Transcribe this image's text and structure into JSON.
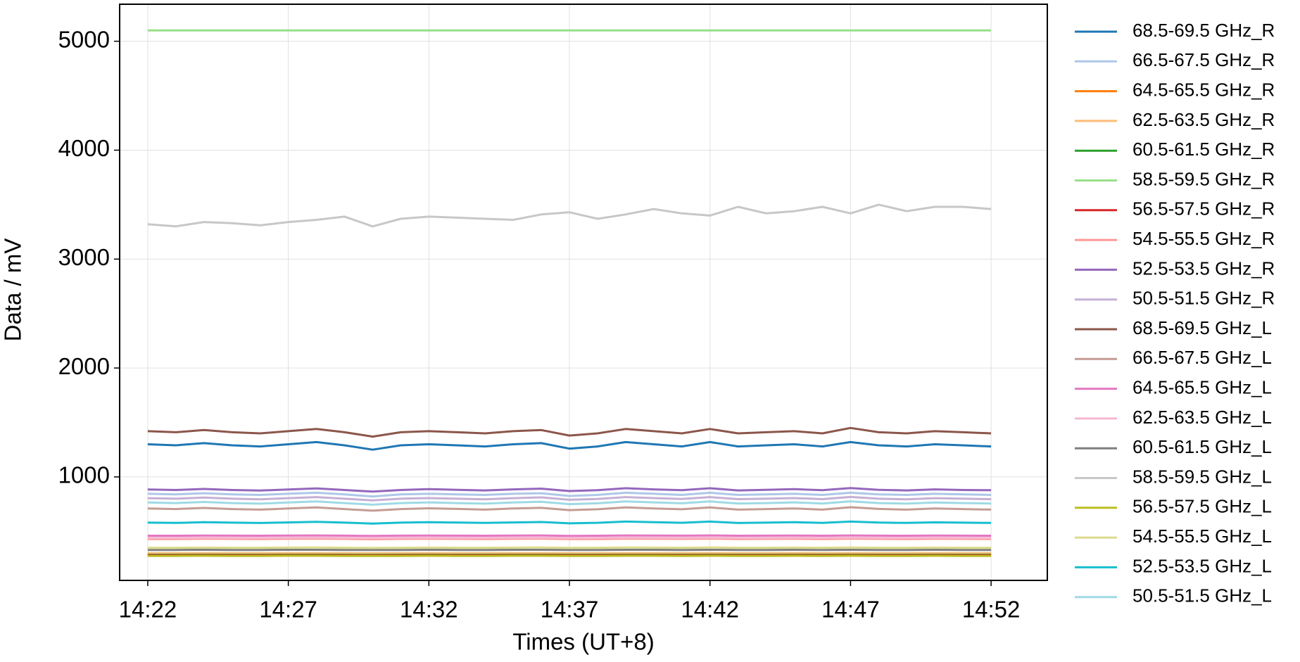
{
  "chart_data": {
    "type": "line",
    "xlabel": "Times (UT+8)",
    "ylabel": "Data / mV",
    "x": [
      "14:22",
      "14:23",
      "14:24",
      "14:25",
      "14:26",
      "14:27",
      "14:28",
      "14:29",
      "14:30",
      "14:31",
      "14:32",
      "14:33",
      "14:34",
      "14:35",
      "14:36",
      "14:37",
      "14:38",
      "14:39",
      "14:40",
      "14:41",
      "14:42",
      "14:43",
      "14:44",
      "14:45",
      "14:46",
      "14:47",
      "14:48",
      "14:49",
      "14:50",
      "14:51",
      "14:52"
    ],
    "xlim": [
      "14:21",
      "14:54"
    ],
    "xticks": [
      "14:22",
      "14:27",
      "14:32",
      "14:37",
      "14:42",
      "14:47",
      "14:52"
    ],
    "ylim": [
      50,
      5340
    ],
    "yticks": [
      1000,
      2000,
      3000,
      4000,
      5000
    ],
    "grid": true,
    "legend": "outside right",
    "series": [
      {
        "name": "68.5-69.5 GHz_R",
        "color": "#1f77b4",
        "values": [
          1300,
          1290,
          1310,
          1290,
          1280,
          1300,
          1320,
          1290,
          1250,
          1290,
          1300,
          1290,
          1280,
          1300,
          1310,
          1260,
          1280,
          1320,
          1300,
          1280,
          1320,
          1280,
          1290,
          1300,
          1280,
          1320,
          1290,
          1280,
          1300,
          1290,
          1280
        ]
      },
      {
        "name": "66.5-67.5 GHz_R",
        "color": "#aec7e8",
        "values": [
          845,
          840,
          850,
          840,
          835,
          845,
          855,
          840,
          820,
          840,
          845,
          840,
          835,
          845,
          850,
          825,
          835,
          855,
          845,
          835,
          855,
          835,
          840,
          845,
          835,
          855,
          840,
          835,
          845,
          840,
          835
        ]
      },
      {
        "name": "64.5-65.5 GHz_R",
        "color": "#ff7f0e",
        "values": [
          290,
          290,
          291,
          290,
          290,
          291,
          291,
          290,
          289,
          290,
          291,
          290,
          290,
          291,
          291,
          290,
          290,
          291,
          291,
          290,
          291,
          290,
          290,
          291,
          290,
          291,
          290,
          290,
          291,
          290,
          290
        ]
      },
      {
        "name": "62.5-63.5 GHz_R",
        "color": "#ffbb78",
        "values": [
          300,
          300,
          301,
          300,
          300,
          301,
          301,
          300,
          299,
          300,
          301,
          300,
          300,
          301,
          301,
          300,
          300,
          301,
          301,
          300,
          301,
          300,
          300,
          301,
          300,
          301,
          300,
          300,
          301,
          300,
          300
        ]
      },
      {
        "name": "60.5-61.5 GHz_R",
        "color": "#2ca02c",
        "values": [
          285,
          285,
          286,
          285,
          285,
          286,
          286,
          285,
          284,
          285,
          286,
          285,
          285,
          286,
          286,
          285,
          285,
          286,
          286,
          285,
          286,
          285,
          285,
          286,
          285,
          286,
          285,
          285,
          286,
          285,
          285
        ]
      },
      {
        "name": "58.5-59.5 GHz_R",
        "color": "#98df8a",
        "values": [
          5100,
          5100,
          5100,
          5100,
          5100,
          5100,
          5100,
          5100,
          5100,
          5100,
          5100,
          5100,
          5100,
          5100,
          5100,
          5100,
          5100,
          5100,
          5100,
          5100,
          5100,
          5100,
          5100,
          5100,
          5100,
          5100,
          5100,
          5100,
          5100,
          5100,
          5100
        ]
      },
      {
        "name": "56.5-57.5 GHz_R",
        "color": "#d62728",
        "values": [
          280,
          280,
          281,
          280,
          280,
          281,
          281,
          280,
          279,
          280,
          281,
          280,
          280,
          281,
          281,
          280,
          280,
          281,
          281,
          280,
          281,
          280,
          280,
          281,
          280,
          281,
          280,
          280,
          281,
          280,
          280
        ]
      },
      {
        "name": "54.5-55.5 GHz_R",
        "color": "#ff9896",
        "values": [
          430,
          430,
          432,
          431,
          430,
          432,
          433,
          431,
          428,
          431,
          432,
          431,
          430,
          432,
          433,
          429,
          430,
          433,
          432,
          431,
          433,
          430,
          431,
          432,
          430,
          433,
          431,
          430,
          432,
          431,
          430
        ]
      },
      {
        "name": "52.5-53.5 GHz_R",
        "color": "#9467bd",
        "values": [
          885,
          880,
          890,
          880,
          875,
          885,
          895,
          880,
          865,
          880,
          888,
          882,
          876,
          886,
          892,
          870,
          878,
          896,
          886,
          878,
          896,
          876,
          882,
          888,
          878,
          898,
          882,
          876,
          886,
          880,
          878
        ]
      },
      {
        "name": "50.5-51.5 GHz_R",
        "color": "#c5b0d5",
        "values": [
          805,
          800,
          810,
          800,
          795,
          805,
          815,
          800,
          785,
          800,
          806,
          800,
          795,
          805,
          812,
          790,
          798,
          815,
          806,
          798,
          815,
          796,
          800,
          806,
          796,
          816,
          800,
          795,
          805,
          800,
          796
        ]
      },
      {
        "name": "68.5-69.5 GHz_L",
        "color": "#8c564b",
        "values": [
          1420,
          1410,
          1430,
          1410,
          1400,
          1420,
          1440,
          1410,
          1370,
          1410,
          1420,
          1410,
          1400,
          1420,
          1430,
          1380,
          1400,
          1440,
          1420,
          1400,
          1440,
          1400,
          1410,
          1420,
          1400,
          1450,
          1410,
          1400,
          1420,
          1410,
          1400
        ]
      },
      {
        "name": "66.5-67.5 GHz_L",
        "color": "#c49c94",
        "values": [
          710,
          705,
          715,
          705,
          700,
          710,
          720,
          705,
          690,
          705,
          712,
          706,
          700,
          710,
          716,
          695,
          703,
          720,
          710,
          703,
          720,
          700,
          705,
          710,
          700,
          722,
          706,
          700,
          710,
          705,
          700
        ]
      },
      {
        "name": "64.5-65.5 GHz_L",
        "color": "#e377c2",
        "values": [
          460,
          460,
          462,
          461,
          460,
          462,
          463,
          461,
          458,
          461,
          462,
          461,
          460,
          462,
          463,
          459,
          460,
          463,
          462,
          461,
          463,
          460,
          461,
          462,
          460,
          463,
          461,
          460,
          462,
          461,
          460
        ]
      },
      {
        "name": "62.5-63.5 GHz_L",
        "color": "#f7b6d2",
        "values": [
          440,
          440,
          441,
          440,
          440,
          441,
          442,
          440,
          438,
          440,
          441,
          440,
          440,
          441,
          442,
          439,
          440,
          442,
          441,
          440,
          442,
          440,
          440,
          441,
          440,
          442,
          440,
          440,
          441,
          440,
          440
        ]
      },
      {
        "name": "60.5-61.5 GHz_L",
        "color": "#7f7f7f",
        "values": [
          330,
          330,
          331,
          330,
          330,
          331,
          331,
          330,
          329,
          330,
          331,
          330,
          330,
          331,
          331,
          330,
          330,
          331,
          331,
          330,
          331,
          330,
          330,
          331,
          330,
          331,
          330,
          330,
          331,
          330,
          330
        ]
      },
      {
        "name": "58.5-59.5 GHz_L",
        "color": "#c7c7c7",
        "values": [
          3320,
          3300,
          3340,
          3330,
          3310,
          3340,
          3360,
          3390,
          3300,
          3370,
          3390,
          3380,
          3370,
          3360,
          3410,
          3430,
          3370,
          3410,
          3460,
          3420,
          3400,
          3480,
          3420,
          3440,
          3480,
          3420,
          3500,
          3440,
          3480,
          3480,
          3460
        ]
      },
      {
        "name": "56.5-57.5 GHz_L",
        "color": "#bcbd22",
        "values": [
          275,
          275,
          276,
          275,
          275,
          276,
          276,
          275,
          274,
          275,
          276,
          275,
          275,
          276,
          276,
          275,
          275,
          276,
          276,
          275,
          276,
          275,
          275,
          276,
          275,
          276,
          275,
          275,
          276,
          275,
          275
        ]
      },
      {
        "name": "54.5-55.5 GHz_L",
        "color": "#dbdb8d",
        "values": [
          350,
          350,
          351,
          350,
          350,
          351,
          352,
          350,
          348,
          350,
          351,
          350,
          350,
          351,
          352,
          349,
          350,
          352,
          351,
          350,
          352,
          350,
          350,
          351,
          350,
          352,
          350,
          350,
          351,
          350,
          350
        ]
      },
      {
        "name": "52.5-53.5 GHz_L",
        "color": "#17becf",
        "values": [
          580,
          578,
          584,
          580,
          577,
          582,
          588,
          580,
          572,
          580,
          584,
          581,
          578,
          582,
          586,
          574,
          579,
          590,
          584,
          579,
          590,
          577,
          580,
          584,
          578,
          590,
          581,
          578,
          583,
          580,
          578
        ]
      },
      {
        "name": "50.5-51.5 GHz_L",
        "color": "#9edae5",
        "values": [
          765,
          760,
          770,
          760,
          755,
          765,
          775,
          760,
          745,
          760,
          766,
          760,
          755,
          765,
          772,
          750,
          758,
          775,
          766,
          758,
          775,
          756,
          760,
          766,
          756,
          776,
          760,
          755,
          765,
          760,
          756
        ]
      }
    ]
  }
}
